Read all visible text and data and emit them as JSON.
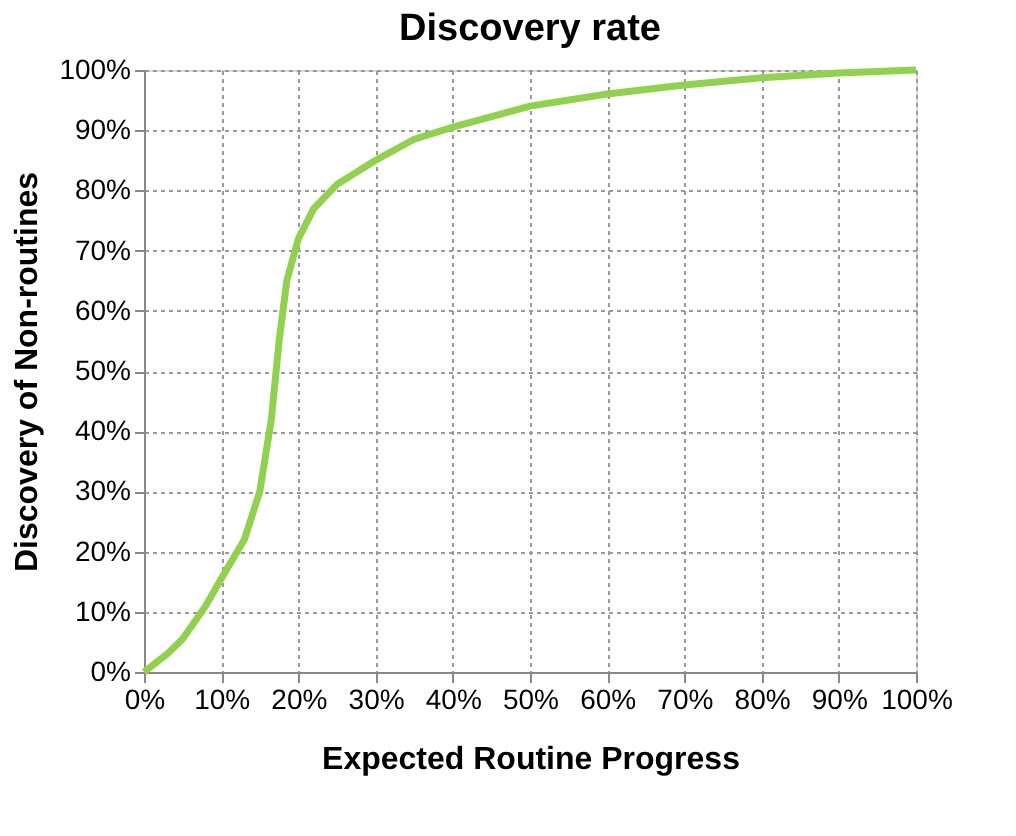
{
  "chart_data": {
    "type": "line",
    "title": "Discovery rate",
    "xlabel": "Expected Routine Progress",
    "ylabel": "Discovery of Non-routines",
    "series": [
      {
        "color": "#92d050",
        "x": [
          0,
          3,
          5,
          8,
          10,
          13,
          15,
          16.5,
          17.5,
          18.5,
          20,
          22,
          25,
          30,
          35,
          40,
          50,
          60,
          70,
          80,
          90,
          100
        ],
        "values": [
          0,
          3,
          5.5,
          11,
          15.5,
          22,
          30,
          42,
          55,
          65,
          72,
          77,
          81,
          85,
          88.5,
          90.5,
          94,
          96,
          97.5,
          98.7,
          99.5,
          100
        ]
      }
    ],
    "xlim": [
      0,
      100
    ],
    "ylim": [
      0,
      100
    ],
    "xticks": [
      {
        "value": 0,
        "label": "0%"
      },
      {
        "value": 10,
        "label": "10%"
      },
      {
        "value": 20,
        "label": "20%"
      },
      {
        "value": 30,
        "label": "30%"
      },
      {
        "value": 40,
        "label": "40%"
      },
      {
        "value": 50,
        "label": "50%"
      },
      {
        "value": 60,
        "label": "60%"
      },
      {
        "value": 70,
        "label": "70%"
      },
      {
        "value": 80,
        "label": "80%"
      },
      {
        "value": 90,
        "label": "90%"
      },
      {
        "value": 100,
        "label": "100%"
      }
    ],
    "yticks": [
      {
        "value": 0,
        "label": "0%"
      },
      {
        "value": 10,
        "label": "10%"
      },
      {
        "value": 20,
        "label": "20%"
      },
      {
        "value": 30,
        "label": "30%"
      },
      {
        "value": 40,
        "label": "40%"
      },
      {
        "value": 50,
        "label": "50%"
      },
      {
        "value": 60,
        "label": "60%"
      },
      {
        "value": 70,
        "label": "70%"
      },
      {
        "value": 80,
        "label": "80%"
      },
      {
        "value": 90,
        "label": "90%"
      },
      {
        "value": 100,
        "label": "100%"
      }
    ],
    "grid": true,
    "legend": false,
    "marker": "none",
    "line_style": "solid"
  }
}
